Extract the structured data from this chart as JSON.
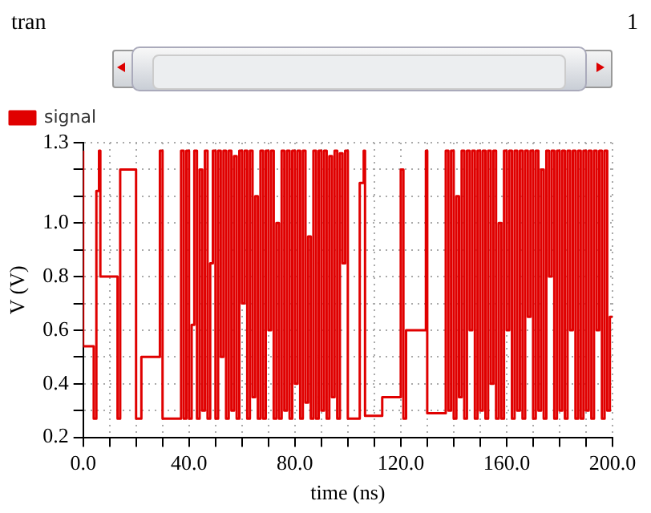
{
  "chart_data": {
    "type": "step",
    "title": "tran",
    "annotations": [
      "1"
    ],
    "xlabel": "time (ns)",
    "ylabel": "V (V)",
    "xlim": [
      0,
      200
    ],
    "xticks": [
      {
        "value": 0,
        "label": "0.0"
      },
      {
        "value": 10,
        "label": null
      },
      {
        "value": 20,
        "label": null
      },
      {
        "value": 30,
        "label": null
      },
      {
        "value": 40,
        "label": "40.0"
      },
      {
        "value": 50,
        "label": null
      },
      {
        "value": 60,
        "label": null
      },
      {
        "value": 70,
        "label": null
      },
      {
        "value": 80,
        "label": "80.0"
      },
      {
        "value": 90,
        "label": null
      },
      {
        "value": 100,
        "label": null
      },
      {
        "value": 110,
        "label": null
      },
      {
        "value": 120,
        "label": "120.0"
      },
      {
        "value": 130,
        "label": null
      },
      {
        "value": 140,
        "label": null
      },
      {
        "value": 150,
        "label": null
      },
      {
        "value": 160,
        "label": "160.0"
      },
      {
        "value": 170,
        "label": null
      },
      {
        "value": 180,
        "label": null
      },
      {
        "value": 190,
        "label": null
      },
      {
        "value": 200,
        "label": "200.0"
      }
    ],
    "ylim": [
      0.2,
      1.3
    ],
    "yticks": [
      0.2,
      {
        "value": 0.3,
        "label": null
      },
      0.4,
      {
        "value": 0.5,
        "label": null
      },
      0.6,
      {
        "value": 0.7,
        "label": null
      },
      0.8,
      {
        "value": 0.9,
        "label": null
      },
      {
        "value": 1.0,
        "label": "1.0"
      },
      {
        "value": 1.1,
        "label": null
      },
      {
        "value": 1.2,
        "label": null
      },
      1.3
    ],
    "grid": true,
    "legend": "top left",
    "marker": "none",
    "line_style": "solid",
    "series": [
      {
        "name": "signal",
        "color": "#e00000",
        "x": [
          0,
          4,
          5,
          6,
          6.5,
          13,
          14,
          20,
          22,
          29,
          30,
          37,
          38,
          39,
          40,
          41,
          42,
          43,
          44,
          45,
          46,
          47,
          48,
          49,
          50,
          51,
          52,
          53,
          54,
          55,
          56,
          57,
          58,
          59,
          60,
          61,
          62,
          63,
          64,
          65,
          66,
          67,
          68,
          69,
          70,
          71,
          72,
          73,
          74,
          75,
          76,
          77,
          78,
          79,
          80,
          81,
          82,
          83,
          84,
          85,
          86,
          87,
          88,
          89,
          90,
          91,
          92,
          93,
          94,
          95,
          96,
          97,
          98,
          99,
          100,
          104.5,
          106,
          106.5,
          113,
          120,
          121,
          122,
          129.5,
          130,
          137,
          138,
          139,
          140,
          141,
          142,
          143,
          144,
          145,
          146,
          147,
          148,
          149,
          150,
          151,
          152,
          153,
          154,
          155,
          156,
          157,
          158,
          159,
          160,
          161,
          162,
          163,
          164,
          165,
          166,
          167,
          168,
          169,
          170,
          171,
          172,
          173,
          174,
          175,
          176,
          177,
          178,
          179,
          180,
          181,
          182,
          183,
          184,
          185,
          186,
          187,
          188,
          189,
          190,
          191,
          192,
          193,
          194,
          195,
          196,
          197,
          198,
          199,
          200
        ],
        "values": [
          1.27,
          0.54,
          0.27,
          1.12,
          1.27,
          0.8,
          0.27,
          1.2,
          0.27,
          0.5,
          1.27,
          0.27,
          1.27,
          0.27,
          1.27,
          0.27,
          0.62,
          1.27,
          0.27,
          1.2,
          0.3,
          1.27,
          0.27,
          0.85,
          1.27,
          0.27,
          1.27,
          0.5,
          1.27,
          0.27,
          1.27,
          0.3,
          1.25,
          0.27,
          1.27,
          0.7,
          1.27,
          0.27,
          1.27,
          0.35,
          1.1,
          0.27,
          1.27,
          0.27,
          1.27,
          0.6,
          1.27,
          0.27,
          1.0,
          0.27,
          1.27,
          0.3,
          1.27,
          0.27,
          1.27,
          0.4,
          1.27,
          0.27,
          1.27,
          0.33,
          0.95,
          0.27,
          1.27,
          0.27,
          1.27,
          0.3,
          1.27,
          0.27,
          1.25,
          0.35,
          1.27,
          0.27,
          1.26,
          0.85,
          1.27,
          0.27,
          1.15,
          1.27,
          0.28,
          0.35,
          1.2,
          0.27,
          0.6,
          1.27,
          0.29,
          1.27,
          0.3,
          1.27,
          0.27,
          1.1,
          0.35,
          1.27,
          0.27,
          1.27,
          0.6,
          1.27,
          0.27,
          1.27,
          0.3,
          1.27,
          0.27,
          1.27,
          0.4,
          1.27,
          0.27,
          1.0,
          0.27,
          1.27,
          0.6,
          1.27,
          0.27,
          1.27,
          0.3,
          1.27,
          0.27,
          1.27,
          0.65,
          1.27,
          0.27,
          1.27,
          0.3,
          1.2,
          0.27,
          1.27,
          0.8,
          1.27,
          0.27,
          1.27,
          0.3,
          1.27,
          0.27,
          1.27,
          0.6,
          1.27,
          0.27,
          1.27,
          0.27,
          1.27,
          0.3,
          1.27,
          0.27,
          1.27,
          0.6,
          1.27,
          0.27,
          1.27,
          0.3,
          0.65
        ]
      }
    ]
  }
}
